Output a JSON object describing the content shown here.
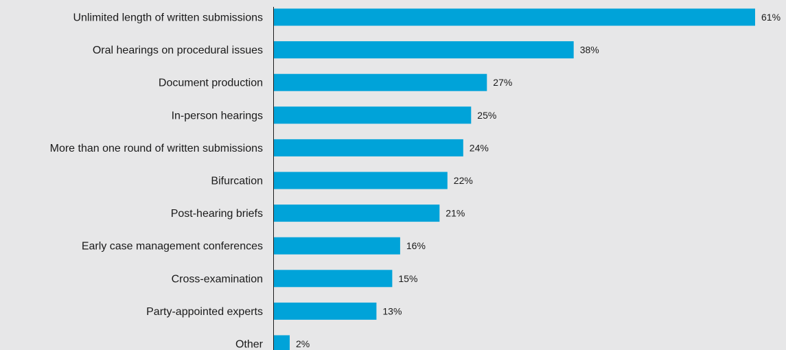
{
  "chart_data": {
    "type": "bar",
    "orientation": "horizontal",
    "categories": [
      "Unlimited length of written submissions",
      "Oral hearings on procedural issues",
      "Document production",
      "In-person hearings",
      "More than one round of written submissions",
      "Bifurcation",
      "Post-hearing briefs",
      "Early case management conferences",
      "Cross-examination",
      "Party-appointed experts",
      "Other"
    ],
    "values": [
      61,
      38,
      27,
      25,
      24,
      22,
      21,
      16,
      15,
      13,
      2
    ],
    "value_labels": [
      "61%",
      "38%",
      "27%",
      "25%",
      "24%",
      "22%",
      "21%",
      "16%",
      "15%",
      "13%",
      "2%"
    ],
    "title": "",
    "xlabel": "",
    "ylabel": "",
    "xlim": [
      0,
      61
    ],
    "grid": false,
    "legend": "none",
    "colors": {
      "bar": "#00a3d9",
      "axis": "#1a1a1a",
      "background": "#e7e7e8",
      "text": "#1a1a1a"
    }
  }
}
